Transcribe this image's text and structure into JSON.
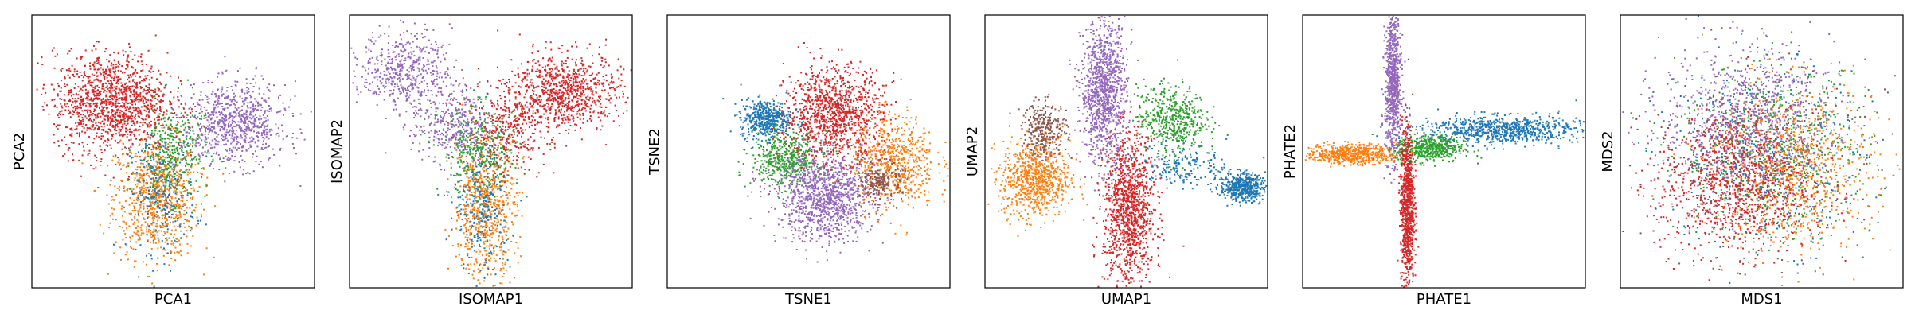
{
  "figure": {
    "background": "#ffffff",
    "series_colors": [
      "#1f77b4",
      "#ff7f0e",
      "#2ca02c",
      "#d62728",
      "#9467bd",
      "#8c564b"
    ]
  },
  "chart_data": [
    {
      "type": "scatter",
      "id": "pca",
      "xlabel": "PCA1",
      "ylabel": "PCA2",
      "xticks": [],
      "yticks": [],
      "grid": false,
      "legend": "none",
      "xlim": [
        0,
        1
      ],
      "ylim": [
        0,
        1
      ],
      "series": [
        {
          "color": "#ff7f0e",
          "clusters": [
            {
              "cx": 0.44,
              "cy": 0.33,
              "sx": 0.075,
              "sy": 0.11,
              "n": 850
            }
          ]
        },
        {
          "color": "#1f77b4",
          "clusters": [
            {
              "cx": 0.46,
              "cy": 0.35,
              "sx": 0.06,
              "sy": 0.11,
              "n": 280
            }
          ]
        },
        {
          "color": "#2ca02c",
          "clusters": [
            {
              "cx": 0.5,
              "cy": 0.5,
              "sx": 0.06,
              "sy": 0.09,
              "n": 360
            }
          ]
        },
        {
          "color": "#d62728",
          "clusters": [
            {
              "cx": 0.28,
              "cy": 0.68,
              "sx": 0.1,
              "sy": 0.09,
              "n": 1300
            }
          ]
        },
        {
          "color": "#9467bd",
          "clusters": [
            {
              "cx": 0.72,
              "cy": 0.6,
              "sx": 0.09,
              "sy": 0.075,
              "n": 800
            }
          ]
        }
      ]
    },
    {
      "type": "scatter",
      "id": "isomap",
      "xlabel": "ISOMAP1",
      "ylabel": "ISOMAP2",
      "xticks": [],
      "yticks": [],
      "grid": false,
      "legend": "none",
      "xlim": [
        0,
        1
      ],
      "ylim": [
        0,
        1
      ],
      "series": [
        {
          "color": "#ff7f0e",
          "clusters": [
            {
              "cx": 0.48,
              "cy": 0.3,
              "sx": 0.055,
              "sy": 0.13,
              "n": 750
            }
          ]
        },
        {
          "color": "#1f77b4",
          "clusters": [
            {
              "cx": 0.47,
              "cy": 0.33,
              "sx": 0.05,
              "sy": 0.14,
              "n": 320
            }
          ]
        },
        {
          "color": "#2ca02c",
          "clusters": [
            {
              "cx": 0.46,
              "cy": 0.5,
              "sx": 0.07,
              "sy": 0.08,
              "n": 320
            }
          ]
        },
        {
          "color": "#d62728",
          "clusters": [
            {
              "cx": 0.76,
              "cy": 0.72,
              "sx": 0.1,
              "sy": 0.07,
              "n": 850
            },
            {
              "cx": 0.56,
              "cy": 0.58,
              "sx": 0.07,
              "sy": 0.07,
              "n": 300
            }
          ]
        },
        {
          "color": "#9467bd",
          "clusters": [
            {
              "cx": 0.2,
              "cy": 0.8,
              "sx": 0.08,
              "sy": 0.07,
              "n": 500
            },
            {
              "cx": 0.36,
              "cy": 0.6,
              "sx": 0.07,
              "sy": 0.07,
              "n": 350
            }
          ]
        }
      ]
    },
    {
      "type": "scatter",
      "id": "tsne",
      "xlabel": "TSNE1",
      "ylabel": "TSNE2",
      "xticks": [],
      "yticks": [],
      "grid": false,
      "legend": "none",
      "xlim": [
        0,
        1
      ],
      "ylim": [
        0,
        1
      ],
      "series": [
        {
          "color": "#1f77b4",
          "clusters": [
            {
              "cx": 0.35,
              "cy": 0.62,
              "sx": 0.045,
              "sy": 0.035,
              "n": 500
            }
          ]
        },
        {
          "color": "#ff7f0e",
          "clusters": [
            {
              "cx": 0.8,
              "cy": 0.46,
              "sx": 0.075,
              "sy": 0.085,
              "n": 650
            }
          ]
        },
        {
          "color": "#2ca02c",
          "clusters": [
            {
              "cx": 0.42,
              "cy": 0.47,
              "sx": 0.06,
              "sy": 0.05,
              "n": 500
            }
          ]
        },
        {
          "color": "#d62728",
          "clusters": [
            {
              "cx": 0.59,
              "cy": 0.64,
              "sx": 0.085,
              "sy": 0.085,
              "n": 1100
            }
          ]
        },
        {
          "color": "#9467bd",
          "clusters": [
            {
              "cx": 0.56,
              "cy": 0.33,
              "sx": 0.085,
              "sy": 0.08,
              "n": 1100
            }
          ]
        },
        {
          "color": "#8c564b",
          "clusters": [
            {
              "cx": 0.76,
              "cy": 0.39,
              "sx": 0.035,
              "sy": 0.035,
              "n": 200
            }
          ]
        }
      ]
    },
    {
      "type": "scatter",
      "id": "umap",
      "xlabel": "UMAP1",
      "ylabel": "UMAP2",
      "xticks": [],
      "yticks": [],
      "grid": false,
      "legend": "none",
      "xlim": [
        0,
        1
      ],
      "ylim": [
        0,
        1
      ],
      "series": [
        {
          "color": "#1f77b4",
          "clusters": [
            {
              "cx": 0.91,
              "cy": 0.37,
              "sx": 0.04,
              "sy": 0.025,
              "n": 500
            },
            {
              "cx": 0.7,
              "cy": 0.45,
              "sx": 0.08,
              "sy": 0.04,
              "n": 200
            }
          ]
        },
        {
          "color": "#ff7f0e",
          "clusters": [
            {
              "cx": 0.18,
              "cy": 0.4,
              "sx": 0.06,
              "sy": 0.07,
              "n": 800
            }
          ]
        },
        {
          "color": "#2ca02c",
          "clusters": [
            {
              "cx": 0.66,
              "cy": 0.62,
              "sx": 0.06,
              "sy": 0.06,
              "n": 500
            }
          ]
        },
        {
          "color": "#d62728",
          "clusters": [
            {
              "cx": 0.51,
              "cy": 0.28,
              "sx": 0.045,
              "sy": 0.14,
              "n": 1200
            }
          ]
        },
        {
          "color": "#9467bd",
          "clusters": [
            {
              "cx": 0.42,
              "cy": 0.72,
              "sx": 0.04,
              "sy": 0.13,
              "n": 1100
            }
          ]
        },
        {
          "color": "#8c564b",
          "clusters": [
            {
              "cx": 0.21,
              "cy": 0.58,
              "sx": 0.04,
              "sy": 0.05,
              "n": 300
            }
          ]
        }
      ]
    },
    {
      "type": "scatter",
      "id": "phate",
      "xlabel": "PHATE1",
      "ylabel": "PHATE2",
      "xticks": [],
      "yticks": [],
      "grid": false,
      "legend": "none",
      "xlim": [
        0,
        1
      ],
      "ylim": [
        0,
        1
      ],
      "series": [
        {
          "color": "#1f77b4",
          "clusters": [
            {
              "cx": 0.7,
              "cy": 0.58,
              "sx": 0.14,
              "sy": 0.025,
              "n": 800
            }
          ]
        },
        {
          "color": "#ff7f0e",
          "clusters": [
            {
              "cx": 0.17,
              "cy": 0.49,
              "sx": 0.08,
              "sy": 0.018,
              "n": 600
            }
          ]
        },
        {
          "color": "#2ca02c",
          "clusters": [
            {
              "cx": 0.45,
              "cy": 0.51,
              "sx": 0.06,
              "sy": 0.025,
              "n": 500
            }
          ]
        },
        {
          "color": "#d62728",
          "clusters": [
            {
              "cx": 0.37,
              "cy": 0.3,
              "sx": 0.012,
              "sy": 0.15,
              "n": 900
            }
          ]
        },
        {
          "color": "#9467bd",
          "clusters": [
            {
              "cx": 0.32,
              "cy": 0.75,
              "sx": 0.014,
              "sy": 0.13,
              "n": 800
            }
          ]
        }
      ]
    },
    {
      "type": "scatter",
      "id": "mds",
      "xlabel": "MDS1",
      "ylabel": "MDS2",
      "xticks": [],
      "yticks": [],
      "grid": false,
      "legend": "none",
      "xlim": [
        0,
        1
      ],
      "ylim": [
        0,
        1
      ],
      "series": [
        {
          "color": "#1f77b4",
          "clusters": [
            {
              "cx": 0.5,
              "cy": 0.48,
              "sx": 0.18,
              "sy": 0.17,
              "n": 500
            }
          ]
        },
        {
          "color": "#8c564b",
          "clusters": [
            {
              "cx": 0.5,
              "cy": 0.5,
              "sx": 0.18,
              "sy": 0.17,
              "n": 300
            }
          ]
        },
        {
          "color": "#2ca02c",
          "clusters": [
            {
              "cx": 0.55,
              "cy": 0.5,
              "sx": 0.17,
              "sy": 0.16,
              "n": 600
            }
          ]
        },
        {
          "color": "#ff7f0e",
          "clusters": [
            {
              "cx": 0.62,
              "cy": 0.45,
              "sx": 0.14,
              "sy": 0.15,
              "n": 800
            }
          ]
        },
        {
          "color": "#9467bd",
          "clusters": [
            {
              "cx": 0.45,
              "cy": 0.62,
              "sx": 0.15,
              "sy": 0.13,
              "n": 800
            }
          ]
        },
        {
          "color": "#d62728",
          "clusters": [
            {
              "cx": 0.4,
              "cy": 0.38,
              "sx": 0.14,
              "sy": 0.13,
              "n": 1000
            }
          ]
        }
      ]
    }
  ]
}
